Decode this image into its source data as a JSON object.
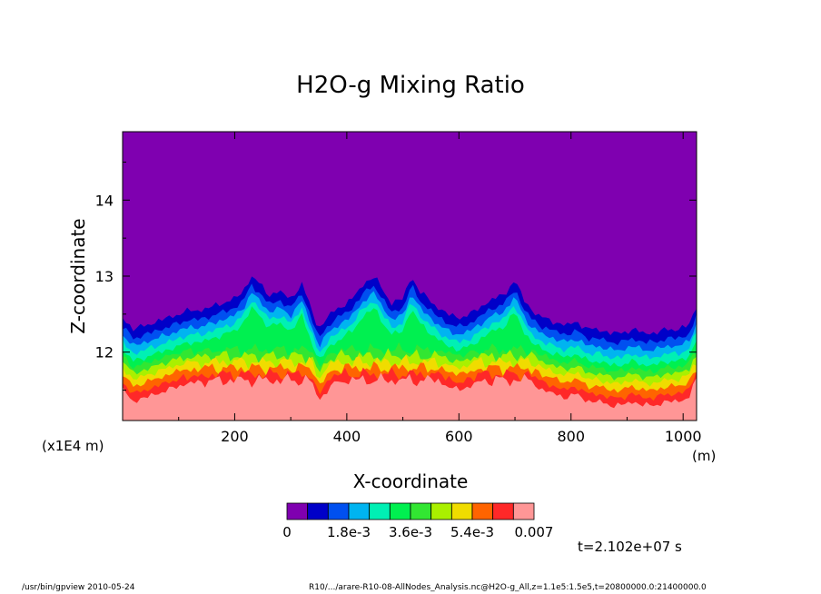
{
  "chart_data": {
    "type": "heatmap",
    "title": "H2O-g Mixing Ratio",
    "xlabel": "X-coordinate",
    "ylabel": "Z-coordinate",
    "x_unit": "(m)",
    "y_scale_note": "(x1E4 m)",
    "xlim": [
      0,
      1024
    ],
    "ylim": [
      11.1,
      14.9
    ],
    "x_ticks": [
      200,
      400,
      600,
      800,
      1000
    ],
    "y_ticks": [
      12,
      13,
      14
    ],
    "x_tick_labels": [
      "200",
      "400",
      "600",
      "800",
      "1000"
    ],
    "y_tick_labels": [
      "12",
      "13",
      "14"
    ],
    "colorbar": {
      "levels": [
        0,
        0.0006,
        0.0012,
        0.0018,
        0.0024,
        0.003,
        0.0036,
        0.0042,
        0.0048,
        0.0054,
        0.006,
        0.0066,
        0.007
      ],
      "colors": [
        "#7f00b0",
        "#0000c8",
        "#0050f0",
        "#00b4f0",
        "#00f0b4",
        "#00f050",
        "#32e632",
        "#aaf000",
        "#f0dc00",
        "#ff6400",
        "#ff2828",
        "#ff9696"
      ],
      "tick_labels": [
        "0",
        "1.8e-3",
        "3.6e-3",
        "5.4e-3",
        "0.007"
      ]
    },
    "profile_x": [
      0,
      20,
      40,
      60,
      80,
      100,
      120,
      140,
      160,
      180,
      200,
      215,
      230,
      245,
      260,
      280,
      300,
      320,
      335,
      350,
      370,
      390,
      410,
      430,
      450,
      465,
      480,
      500,
      515,
      530,
      545,
      560,
      580,
      600,
      620,
      640,
      660,
      680,
      700,
      715,
      730,
      750,
      770,
      790,
      810,
      830,
      850,
      870,
      890,
      910,
      930,
      950,
      970,
      990,
      1010,
      1024
    ],
    "profile_top": [
      12.45,
      12.3,
      12.35,
      12.4,
      12.45,
      12.5,
      12.55,
      12.55,
      12.6,
      12.65,
      12.7,
      12.8,
      13.0,
      12.9,
      12.75,
      12.8,
      12.7,
      12.9,
      12.6,
      12.3,
      12.5,
      12.6,
      12.7,
      12.9,
      13.0,
      12.8,
      12.65,
      12.7,
      13.0,
      12.8,
      12.7,
      12.6,
      12.5,
      12.45,
      12.5,
      12.6,
      12.7,
      12.75,
      12.95,
      12.7,
      12.55,
      12.45,
      12.4,
      12.35,
      12.4,
      12.3,
      12.3,
      12.25,
      12.25,
      12.3,
      12.25,
      12.25,
      12.3,
      12.3,
      12.35,
      12.6
    ]
  },
  "time_label": "t=2.102e+07 s",
  "footer_left": "/usr/bin/gpview   2010-05-24",
  "footer_right": "R10/.../arare-R10-08-AllNodes_Analysis.nc@H2O-g_All,z=1.1e5:1.5e5,t=20800000.0:21400000.0"
}
